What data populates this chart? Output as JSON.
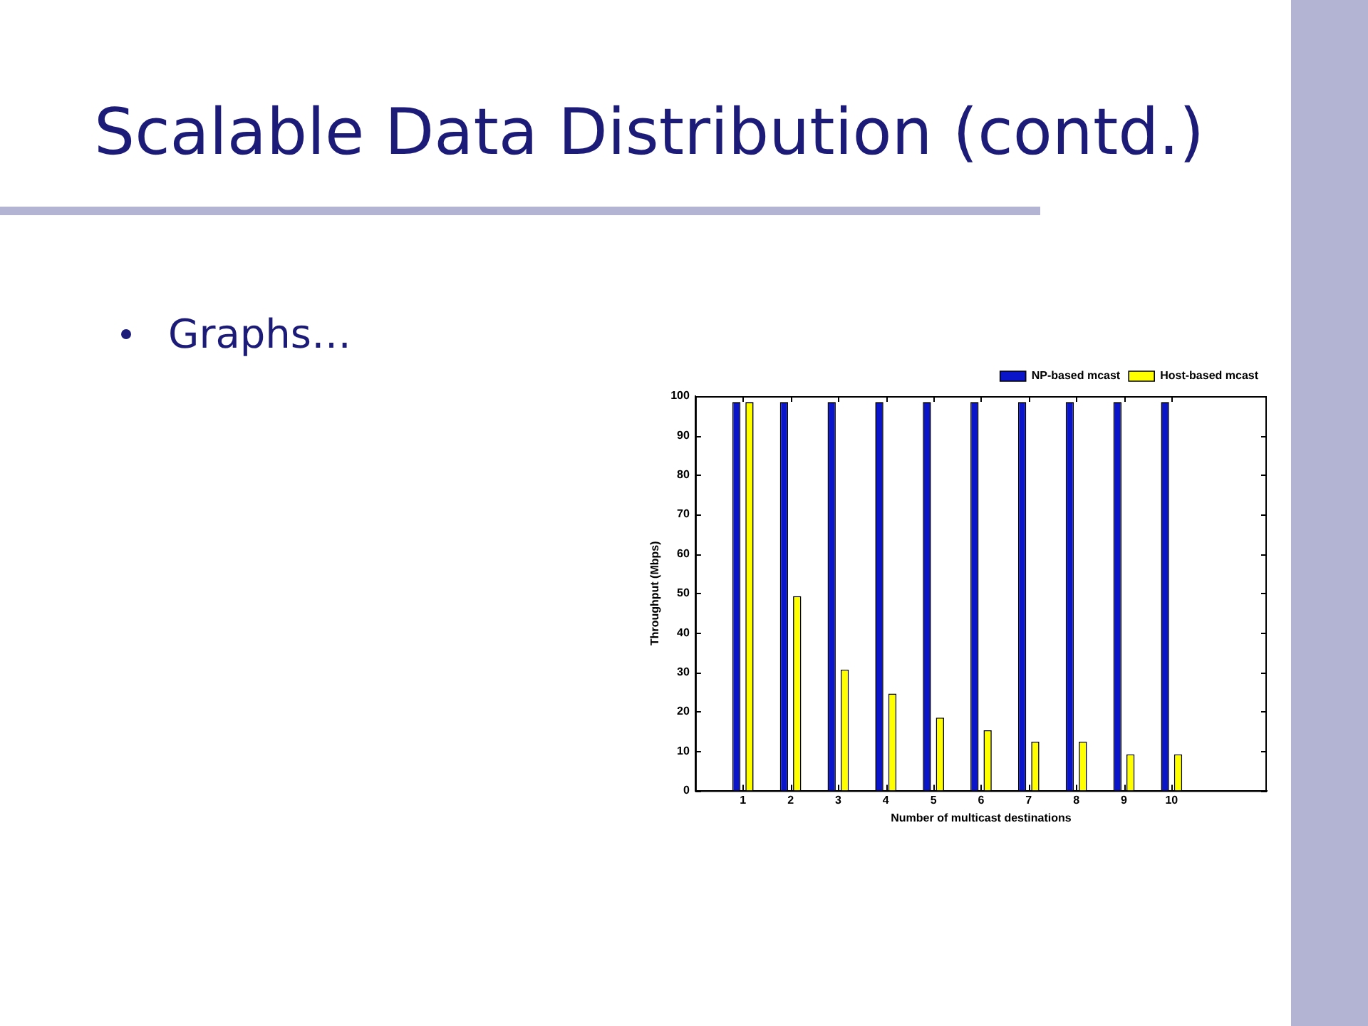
{
  "chart_data": {
    "type": "bar",
    "title": "Scalable Data Distribution (contd.)",
    "annotations": [
      "Graphs…"
    ],
    "x": [
      1,
      2,
      3,
      4,
      5,
      6,
      7,
      8,
      9,
      10
    ],
    "xlim": [
      0,
      12
    ],
    "xticks": [
      1,
      2,
      3,
      4,
      5,
      6,
      7,
      8,
      9,
      10
    ],
    "ylim": [
      0,
      100
    ],
    "yticks": [
      0,
      10,
      20,
      30,
      40,
      50,
      60,
      70,
      80,
      90,
      100
    ],
    "xlabel": "Number of multicast destinations",
    "ylabel": "Throughput (Mbps)",
    "series": [
      {
        "name": "NP-based mcast",
        "color": "#0a14c8",
        "values": [
          98.5,
          98.5,
          98.5,
          98.5,
          98.5,
          98.5,
          98.5,
          98.5,
          98.5,
          98.5
        ]
      },
      {
        "name": "Host-based mcast",
        "color": "#ffff00",
        "values": [
          98.5,
          49.3,
          30.7,
          24.6,
          18.5,
          15.3,
          12.4,
          12.4,
          9.2,
          9.2
        ]
      }
    ],
    "legend": "top right"
  }
}
